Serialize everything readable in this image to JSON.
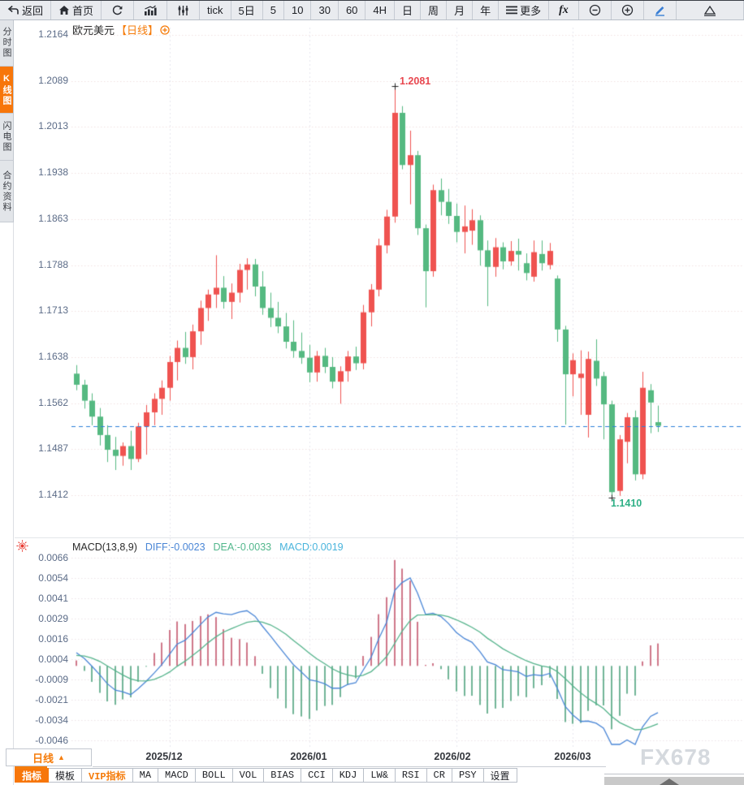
{
  "toolbar": {
    "items": [
      {
        "label": "返回",
        "icon": "back-arrow-icon"
      },
      {
        "label": "首页",
        "icon": "home-icon"
      },
      {
        "label": "",
        "icon": "refresh-icon"
      },
      {
        "label": "",
        "icon": "bar-chart-icon"
      },
      {
        "label": "",
        "icon": "candlestick-sliders-icon"
      },
      {
        "label": "tick"
      },
      {
        "label": "5日"
      },
      {
        "label": "5"
      },
      {
        "label": "10"
      },
      {
        "label": "30"
      },
      {
        "label": "60"
      },
      {
        "label": "4H"
      },
      {
        "label": "日"
      },
      {
        "label": "周"
      },
      {
        "label": "月"
      },
      {
        "label": "年"
      },
      {
        "label": "更多",
        "icon": "menu-icon"
      },
      {
        "label": "fx",
        "icon": "fx-icon"
      },
      {
        "label": "",
        "icon": "zoom-out-icon"
      },
      {
        "label": "",
        "icon": "zoom-in-icon"
      },
      {
        "label": "",
        "icon": "pencil-icon"
      },
      {
        "label": "",
        "icon": "triangle-icon"
      }
    ]
  },
  "sidebar": {
    "items": [
      {
        "label": "分时图",
        "active": false
      },
      {
        "label": "K线图",
        "active": true
      },
      {
        "label": "闪电图",
        "active": false
      },
      {
        "label": "合约资料",
        "active": false
      }
    ]
  },
  "chart_header": {
    "symbol": "欧元美元",
    "period_tag": "【日线】"
  },
  "price_axis": [
    "1.2164",
    "1.2089",
    "1.2013",
    "1.1938",
    "1.1863",
    "1.1788",
    "1.1713",
    "1.1638",
    "1.1562",
    "1.1487",
    "1.1412"
  ],
  "macd_axis": [
    "0.0066",
    "0.0054",
    "0.0041",
    "0.0029",
    "0.0016",
    "0.0004",
    "-0.0009",
    "-0.0021",
    "-0.0034",
    "-0.0046"
  ],
  "macd_header": {
    "name": "MACD(13,8,9)",
    "diff": "DIFF:-0.0023",
    "dea": "DEA:-0.0033",
    "macd": "MACD:0.0019"
  },
  "annotations": {
    "high": "1.2081",
    "low": "1.1410"
  },
  "period_selector": {
    "label": "日线",
    "arrow": "▲"
  },
  "watermark": "FX678",
  "bottom_tabs": [
    {
      "label": "指标",
      "state": "active"
    },
    {
      "label": "模板",
      "state": "normal"
    },
    {
      "label": "VIP指标",
      "state": "vip"
    },
    {
      "label": "MA",
      "state": "normal"
    },
    {
      "label": "MACD",
      "state": "normal"
    },
    {
      "label": "BOLL",
      "state": "normal"
    },
    {
      "label": "VOL",
      "state": "normal"
    },
    {
      "label": "BIAS",
      "state": "normal"
    },
    {
      "label": "CCI",
      "state": "normal"
    },
    {
      "label": "KDJ",
      "state": "normal"
    },
    {
      "label": "LW&",
      "state": "normal"
    },
    {
      "label": "RSI",
      "state": "normal"
    },
    {
      "label": "CR",
      "state": "normal"
    },
    {
      "label": "PSY",
      "state": "normal"
    },
    {
      "label": "设置",
      "state": "normal"
    }
  ],
  "colors": {
    "accent_orange": "#f7760a",
    "candle_up": "#ef5350",
    "candle_down": "#55b981",
    "macd_bar_up": "#c4556d",
    "macd_bar_down": "#4fa27d",
    "diff_blue": "#4a86d6",
    "dea_green": "#54b38b",
    "price_line": "#2b7fd9",
    "high_red": "#e8474f",
    "low_green": "#2fb086",
    "axis_text": "#5b6b87",
    "grid_pink": "#f1e0e0",
    "grid_vertical": "#e7e7ee",
    "watermark_gray": "#d5d9de"
  },
  "chart_data": {
    "type": "candlestick",
    "title": "欧元美元 日线",
    "price_top": 1.2164,
    "price_gridlines": [
      1.2164,
      1.2089,
      1.2013,
      1.1938,
      1.1863,
      1.1788,
      1.1713,
      1.1638,
      1.1562,
      1.1487,
      1.1412
    ],
    "current_price": 1.1527,
    "high_marker": {
      "value": 1.2081,
      "index": 41
    },
    "low_marker": {
      "value": 1.141,
      "index": 69
    },
    "month_ticks": [
      {
        "label": "2025/12",
        "index": 12
      },
      {
        "label": "2026/01",
        "index": 30
      },
      {
        "label": "2026/02",
        "index": 49
      },
      {
        "label": "2026/03",
        "index": 64
      }
    ],
    "candles": [
      [
        1.1612,
        1.1626,
        1.1585,
        1.1594
      ],
      [
        1.1594,
        1.1602,
        1.1555,
        1.1568
      ],
      [
        1.1568,
        1.158,
        1.1528,
        1.1542
      ],
      [
        1.1542,
        1.1556,
        1.1495,
        1.1512
      ],
      [
        1.1512,
        1.1528,
        1.1468,
        1.1488
      ],
      [
        1.1488,
        1.1509,
        1.1455,
        1.1478
      ],
      [
        1.1478,
        1.15,
        1.1462,
        1.1494
      ],
      [
        1.1494,
        1.1519,
        1.1455,
        1.1473
      ],
      [
        1.1473,
        1.1532,
        1.1468,
        1.1526
      ],
      [
        1.1526,
        1.1561,
        1.148,
        1.1549
      ],
      [
        1.1549,
        1.158,
        1.1528,
        1.1571
      ],
      [
        1.1571,
        1.1601,
        1.1545,
        1.1589
      ],
      [
        1.1589,
        1.1641,
        1.1568,
        1.1631
      ],
      [
        1.1631,
        1.1666,
        1.1601,
        1.1654
      ],
      [
        1.1654,
        1.168,
        1.1628,
        1.1639
      ],
      [
        1.1639,
        1.1692,
        1.1619,
        1.1681
      ],
      [
        1.1681,
        1.1731,
        1.1659,
        1.1719
      ],
      [
        1.1719,
        1.1749,
        1.1698,
        1.1741
      ],
      [
        1.1741,
        1.1805,
        1.1719,
        1.1752
      ],
      [
        1.1752,
        1.1771,
        1.1718,
        1.1729
      ],
      [
        1.1729,
        1.1759,
        1.1701,
        1.1744
      ],
      [
        1.1744,
        1.1791,
        1.1728,
        1.1781
      ],
      [
        1.1781,
        1.18,
        1.1749,
        1.179
      ],
      [
        1.179,
        1.1799,
        1.1738,
        1.1754
      ],
      [
        1.1754,
        1.1779,
        1.1708,
        1.1719
      ],
      [
        1.1719,
        1.1744,
        1.1688,
        1.1703
      ],
      [
        1.1703,
        1.1729,
        1.1678,
        1.1689
      ],
      [
        1.1689,
        1.1711,
        1.1653,
        1.1664
      ],
      [
        1.1664,
        1.1699,
        1.1638,
        1.1649
      ],
      [
        1.1649,
        1.1679,
        1.1628,
        1.1638
      ],
      [
        1.1638,
        1.1659,
        1.1598,
        1.1614
      ],
      [
        1.1614,
        1.1649,
        1.1599,
        1.1641
      ],
      [
        1.1641,
        1.1654,
        1.1613,
        1.1623
      ],
      [
        1.1623,
        1.1639,
        1.1588,
        1.1599
      ],
      [
        1.1599,
        1.1624,
        1.1563,
        1.1616
      ],
      [
        1.1616,
        1.1649,
        1.1599,
        1.164
      ],
      [
        1.164,
        1.1656,
        1.1618,
        1.1629
      ],
      [
        1.1629,
        1.1724,
        1.1619,
        1.1712
      ],
      [
        1.1712,
        1.1758,
        1.1689,
        1.1749
      ],
      [
        1.1749,
        1.1832,
        1.1738,
        1.1821
      ],
      [
        1.1821,
        1.1879,
        1.1808,
        1.1868
      ],
      [
        1.1868,
        1.2081,
        1.1858,
        1.2037
      ],
      [
        1.2037,
        1.2048,
        1.1945,
        1.1952
      ],
      [
        1.1952,
        1.2008,
        1.1888,
        1.1968
      ],
      [
        1.1968,
        1.1975,
        1.1838,
        1.1849
      ],
      [
        1.1849,
        1.1855,
        1.172,
        1.1779
      ],
      [
        1.1779,
        1.192,
        1.177,
        1.1911
      ],
      [
        1.1911,
        1.193,
        1.187,
        1.1892
      ],
      [
        1.1892,
        1.1913,
        1.1856,
        1.1869
      ],
      [
        1.1869,
        1.1889,
        1.1826,
        1.1843
      ],
      [
        1.1843,
        1.1886,
        1.1808,
        1.1852
      ],
      [
        1.1845,
        1.188,
        1.1822,
        1.1862
      ],
      [
        1.1862,
        1.187,
        1.1788,
        1.1813
      ],
      [
        1.1813,
        1.1829,
        1.1722,
        1.1786
      ],
      [
        1.1786,
        1.1833,
        1.177,
        1.1818
      ],
      [
        1.1818,
        1.1826,
        1.1782,
        1.1795
      ],
      [
        1.1795,
        1.1828,
        1.1788,
        1.1812
      ],
      [
        1.1812,
        1.1832,
        1.178,
        1.1806
      ],
      [
        1.1792,
        1.1808,
        1.1764,
        1.1776
      ],
      [
        1.177,
        1.1829,
        1.1762,
        1.181
      ],
      [
        1.1807,
        1.1829,
        1.178,
        1.1792
      ],
      [
        1.1789,
        1.1825,
        1.1782,
        1.1812
      ],
      [
        1.1767,
        1.1772,
        1.1664,
        1.1684
      ],
      [
        1.1684,
        1.169,
        1.1529,
        1.1611
      ],
      [
        1.1611,
        1.1645,
        1.1575,
        1.1634
      ],
      [
        1.1605,
        1.165,
        1.1545,
        1.1612
      ],
      [
        1.1545,
        1.1648,
        1.1508,
        1.1636
      ],
      [
        1.1633,
        1.1668,
        1.1592,
        1.1604
      ],
      [
        1.1608,
        1.1615,
        1.1505,
        1.1562
      ],
      [
        1.1562,
        1.1568,
        1.141,
        1.1419
      ],
      [
        1.1421,
        1.1512,
        1.1413,
        1.1505
      ],
      [
        1.1501,
        1.1548,
        1.1466,
        1.1541
      ],
      [
        1.1541,
        1.1552,
        1.1438,
        1.1448
      ],
      [
        1.1448,
        1.1615,
        1.144,
        1.1589
      ],
      [
        1.1585,
        1.1595,
        1.1515,
        1.1565
      ],
      [
        1.1533,
        1.156,
        1.1517,
        1.1527
      ]
    ],
    "macd": {
      "params": [
        13,
        8,
        9
      ],
      "diff": -0.0023,
      "dea": -0.0033,
      "bar": 0.0019,
      "gridlines": [
        0.0066,
        0.0054,
        0.0041,
        0.0029,
        0.0016,
        0.0004,
        -0.0009,
        -0.0021,
        -0.0034,
        -0.0046
      ]
    }
  }
}
